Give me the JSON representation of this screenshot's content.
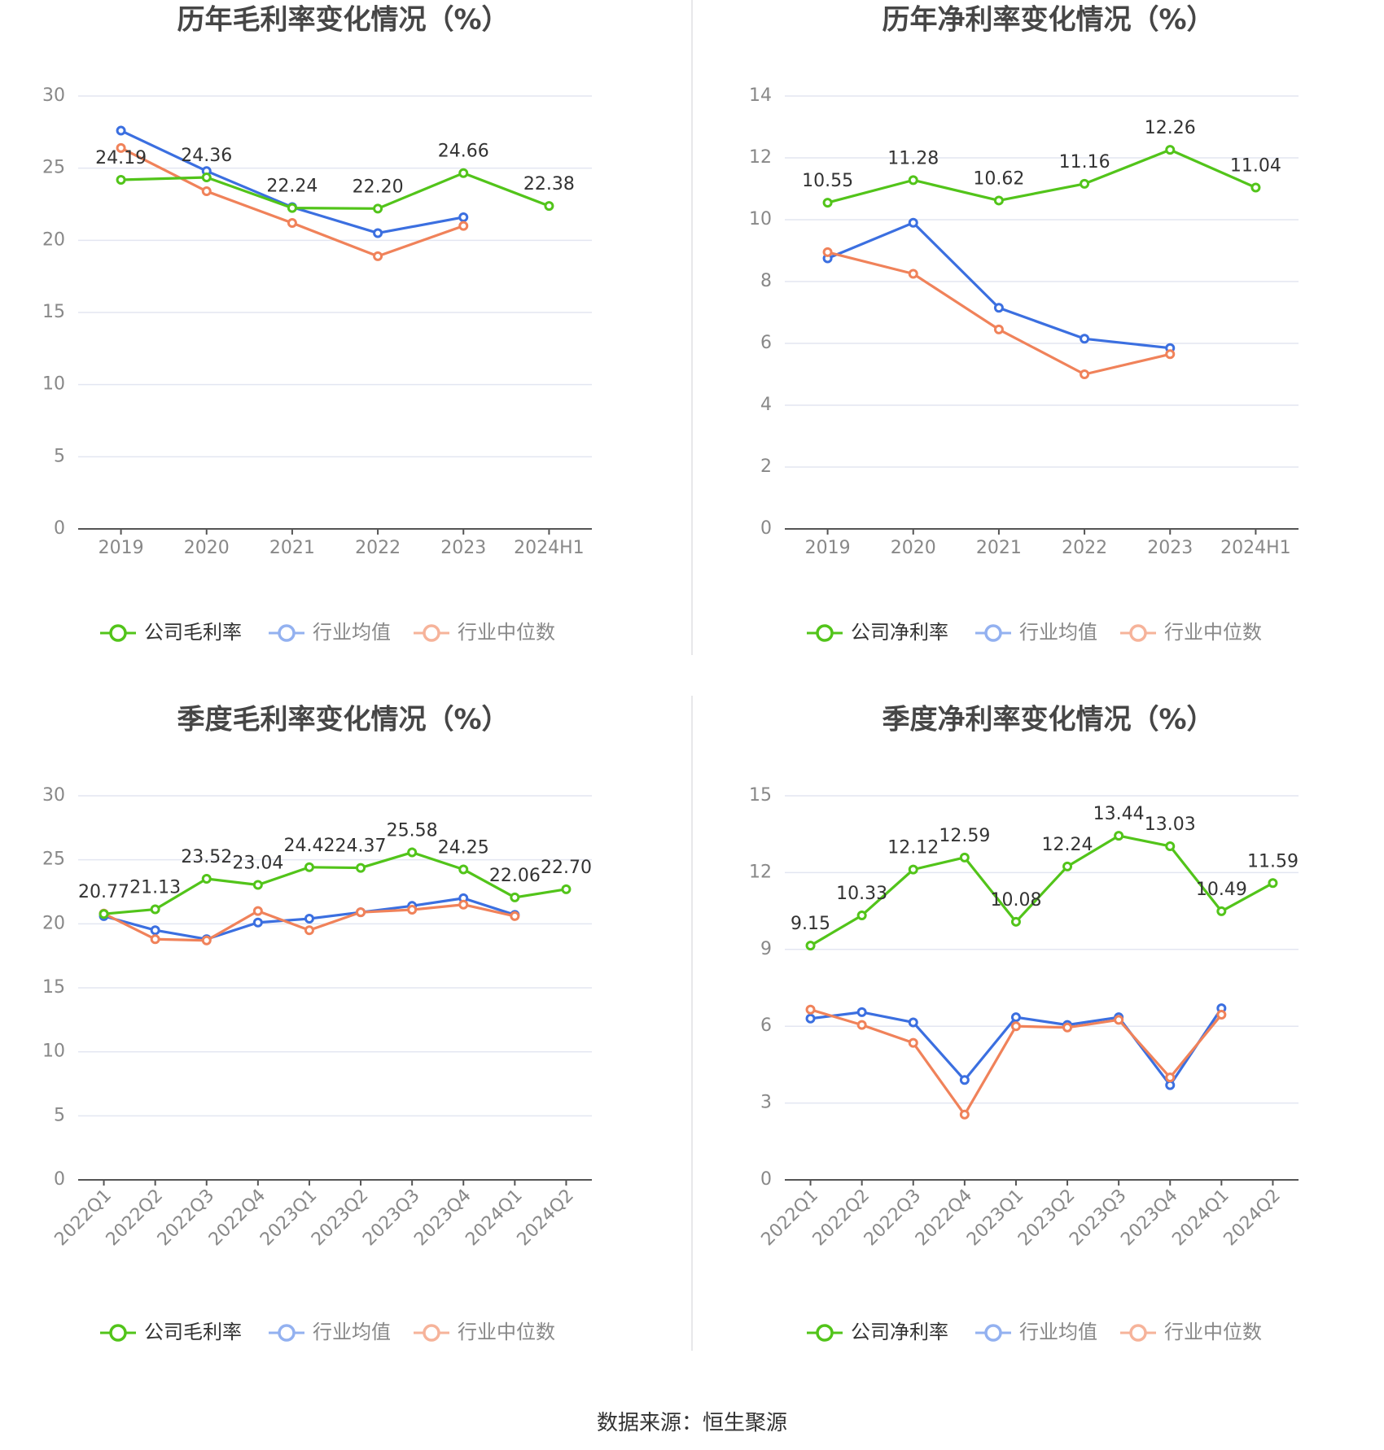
{
  "colors": {
    "company": "#52c41a",
    "avg": "#3b6fe0",
    "median": "#f0825a",
    "avg_legend": "#93b1f0",
    "median_legend": "#f6b39a",
    "grid": "#e3e6f1",
    "axis": "#555555",
    "tick": "#888888",
    "label": "#333333"
  },
  "source": "数据来源：恒生聚源",
  "chart_data": [
    {
      "type": "line",
      "title": "历年毛利率变化情况（%）",
      "categories": [
        "2019",
        "2020",
        "2021",
        "2022",
        "2023",
        "2024H1"
      ],
      "ylim": [
        0,
        30
      ],
      "yticks": [
        0,
        5,
        10,
        15,
        20,
        25,
        30
      ],
      "rotate_xticks": false,
      "legend": [
        "公司毛利率",
        "行业均值",
        "行业中位数"
      ],
      "series": [
        {
          "name": "公司毛利率",
          "role": "company",
          "values": [
            24.19,
            24.36,
            22.24,
            22.2,
            24.66,
            22.38
          ],
          "labels": [
            "24.19",
            "24.36",
            "22.24",
            "22.20",
            "24.66",
            "22.38"
          ]
        },
        {
          "name": "行业均值",
          "role": "avg",
          "values": [
            27.6,
            24.8,
            22.3,
            20.5,
            21.6,
            null
          ]
        },
        {
          "name": "行业中位数",
          "role": "median",
          "values": [
            26.4,
            23.4,
            21.2,
            18.9,
            21.0,
            null
          ]
        }
      ]
    },
    {
      "type": "line",
      "title": "历年净利率变化情况（%）",
      "categories": [
        "2019",
        "2020",
        "2021",
        "2022",
        "2023",
        "2024H1"
      ],
      "ylim": [
        0,
        14
      ],
      "yticks": [
        0,
        2,
        4,
        6,
        8,
        10,
        12,
        14
      ],
      "rotate_xticks": false,
      "legend": [
        "公司净利率",
        "行业均值",
        "行业中位数"
      ],
      "series": [
        {
          "name": "公司净利率",
          "role": "company",
          "values": [
            10.55,
            11.28,
            10.62,
            11.16,
            12.26,
            11.04
          ],
          "labels": [
            "10.55",
            "11.28",
            "10.62",
            "11.16",
            "12.26",
            "11.04"
          ]
        },
        {
          "name": "行业均值",
          "role": "avg",
          "values": [
            8.75,
            9.9,
            7.15,
            6.15,
            5.85,
            null
          ]
        },
        {
          "name": "行业中位数",
          "role": "median",
          "values": [
            8.95,
            8.25,
            6.45,
            5.0,
            5.65,
            null
          ]
        }
      ]
    },
    {
      "type": "line",
      "title": "季度毛利率变化情况（%）",
      "categories": [
        "2022Q1",
        "2022Q2",
        "2022Q3",
        "2022Q4",
        "2023Q1",
        "2023Q2",
        "2023Q3",
        "2023Q4",
        "2024Q1",
        "2024Q2"
      ],
      "ylim": [
        0,
        30
      ],
      "yticks": [
        0,
        5,
        10,
        15,
        20,
        25,
        30
      ],
      "rotate_xticks": true,
      "legend": [
        "公司毛利率",
        "行业均值",
        "行业中位数"
      ],
      "series": [
        {
          "name": "公司毛利率",
          "role": "company",
          "values": [
            20.77,
            21.13,
            23.52,
            23.04,
            24.42,
            24.37,
            25.58,
            24.25,
            22.06,
            22.7
          ],
          "labels": [
            "20.77",
            "21.13",
            "23.52",
            "23.04",
            "24.42",
            "24.37",
            "25.58",
            "24.25",
            "22.06",
            "22.70"
          ]
        },
        {
          "name": "行业均值",
          "role": "avg",
          "values": [
            20.6,
            19.5,
            18.8,
            20.1,
            20.4,
            20.9,
            21.4,
            22.0,
            20.7,
            null
          ]
        },
        {
          "name": "行业中位数",
          "role": "median",
          "values": [
            20.8,
            18.8,
            18.7,
            21.0,
            19.5,
            20.9,
            21.1,
            21.5,
            20.6,
            null
          ]
        }
      ]
    },
    {
      "type": "line",
      "title": "季度净利率变化情况（%）",
      "categories": [
        "2022Q1",
        "2022Q2",
        "2022Q3",
        "2022Q4",
        "2023Q1",
        "2023Q2",
        "2023Q3",
        "2023Q4",
        "2024Q1",
        "2024Q2"
      ],
      "ylim": [
        0,
        15
      ],
      "yticks": [
        0,
        3,
        6,
        9,
        12,
        15
      ],
      "rotate_xticks": true,
      "legend": [
        "公司净利率",
        "行业均值",
        "行业中位数"
      ],
      "series": [
        {
          "name": "公司净利率",
          "role": "company",
          "values": [
            9.15,
            10.33,
            12.12,
            12.59,
            10.08,
            12.24,
            13.44,
            13.03,
            10.49,
            11.59
          ],
          "labels": [
            "9.15",
            "10.33",
            "12.12",
            "12.59",
            "10.08",
            "12.24",
            "13.44",
            "13.03",
            "10.49",
            "11.59"
          ]
        },
        {
          "name": "行业均值",
          "role": "avg",
          "values": [
            6.3,
            6.55,
            6.15,
            3.9,
            6.35,
            6.05,
            6.35,
            3.7,
            6.7,
            null
          ]
        },
        {
          "name": "行业中位数",
          "role": "median",
          "values": [
            6.65,
            6.05,
            5.35,
            2.55,
            6.0,
            5.95,
            6.25,
            4.0,
            6.45,
            null
          ]
        }
      ]
    }
  ]
}
